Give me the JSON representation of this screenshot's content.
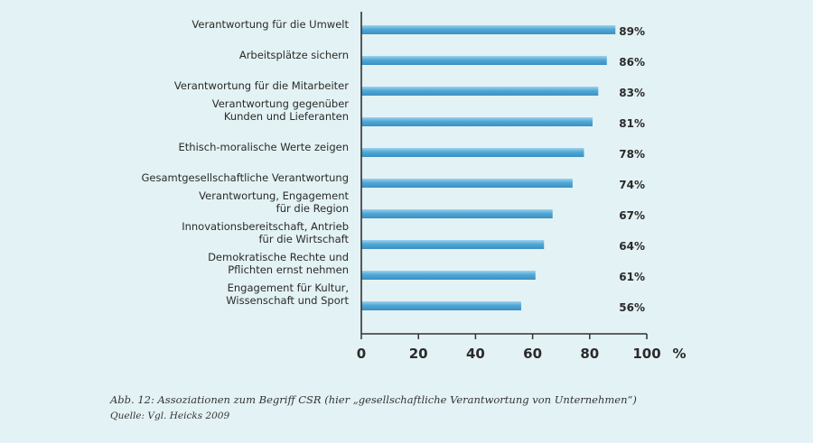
{
  "chart_data": {
    "type": "bar",
    "orientation": "horizontal",
    "categories": [
      [
        "Verantwortung für die Umwelt"
      ],
      [
        "Arbeitsplätze sichern"
      ],
      [
        "Verantwortung für die Mitarbeiter"
      ],
      [
        "Verantwortung gegenüber",
        "Kunden und Lieferanten"
      ],
      [
        "Ethisch-moralische Werte zeigen"
      ],
      [
        "Gesamtgesellschaftliche Verantwortung"
      ],
      [
        "Verantwortung, Engagement",
        "für die Region"
      ],
      [
        "Innovationsbereitschaft, Antrieb",
        "für die Wirtschaft"
      ],
      [
        "Demokratische Rechte und",
        "Pflichten ernst nehmen"
      ],
      [
        "Engagement für Kultur,",
        "Wissenschaft und Sport"
      ]
    ],
    "values": [
      89,
      86,
      83,
      81,
      78,
      74,
      67,
      64,
      61,
      56
    ],
    "value_labels": [
      "89%",
      "86%",
      "83%",
      "81%",
      "78%",
      "74%",
      "67%",
      "64%",
      "61%",
      "56%"
    ],
    "xlim": [
      0,
      100
    ],
    "xticks": [
      "0",
      "20",
      "40",
      "60",
      "80",
      "100"
    ],
    "xunit": "%",
    "bar_color": "#4fa8d6",
    "bar_highlight": "#9fd3ee",
    "axis_color": "#333333"
  },
  "caption": {
    "main": "Abb. 12: Assoziationen zum Begriff CSR (hier „gesellschaftliche Verantwortung von Unternehmen“)",
    "source": "Quelle: Vgl. Heicks 2009"
  }
}
